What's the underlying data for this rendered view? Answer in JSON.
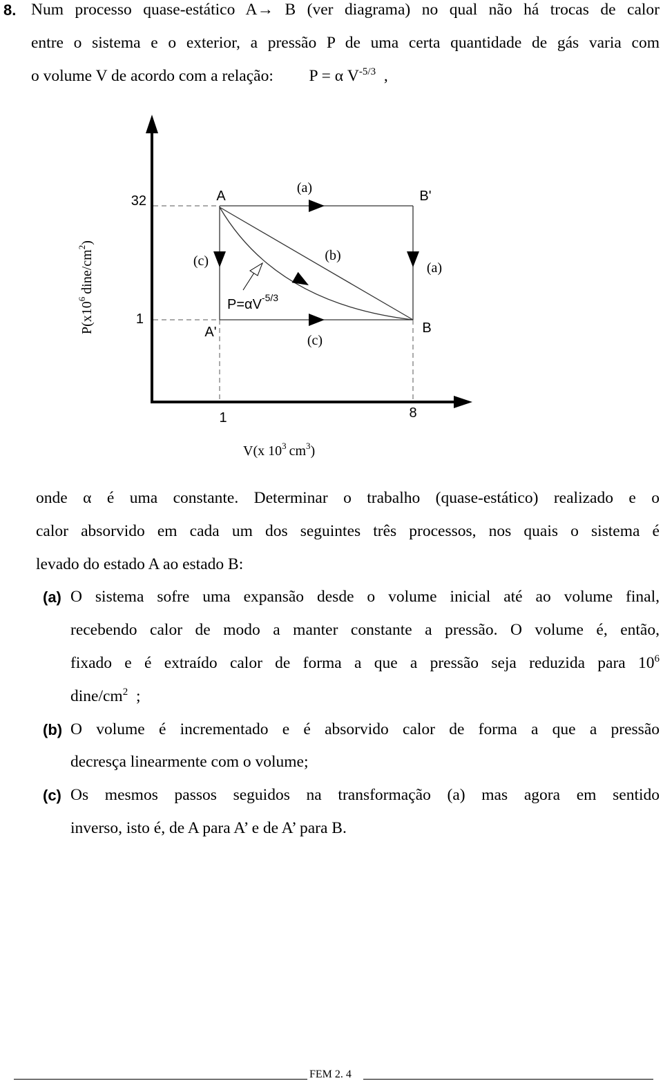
{
  "problem_number": "8.",
  "intro": {
    "lines": [
      [
        {
          "text": "Num processo quase-estático A→ B (ver diagrama) no qual não há trocas de calor"
        }
      ],
      [
        {
          "text": "entre o sistema e o exterior, a pressão P de uma certa quantidade de gás varia com"
        }
      ],
      [
        {
          "text": "o volume V de acordo com a relação:"
        },
        {
          "text": "P = α V"
        },
        {
          "sup": "-5/3"
        },
        {
          "text": ","
        }
      ]
    ]
  },
  "diagram": {
    "y_label": {
      "text": "P(x10",
      "exp": "6",
      "unit": "dine/cm",
      "unit_exp": "2",
      "close": ")"
    },
    "x_label": {
      "text": "V(x 10",
      "exp": "3",
      "unit": "cm",
      "unit_exp": "3",
      "close": ")"
    },
    "y_ticks": [
      32,
      1
    ],
    "x_ticks": [
      1,
      8
    ],
    "points": [
      "A",
      "B'",
      "A'",
      "B"
    ],
    "path_labels": [
      "(a)",
      "(c)",
      "(b)",
      "(a)",
      "(c)"
    ],
    "curve_label": {
      "text": "P=αV",
      "exp": "-5/3"
    }
  },
  "body": {
    "lines": [
      [
        {
          "text": "onde α é uma constante. Determinar o trabalho (quase-estático) realizado e o"
        }
      ],
      [
        {
          "text": "calor absorvido em cada um dos seguintes três processos, nos quais o sistema é"
        }
      ],
      [
        {
          "text": "levado do estado A ao estado B:"
        }
      ]
    ],
    "items": [
      {
        "label": "(a)",
        "lines": [
          [
            {
              "text": "O sistema sofre uma expansão desde o volume inicial até ao volume final,"
            }
          ],
          [
            {
              "text": "recebendo calor de modo a manter constante a pressão. O volume é, então,"
            }
          ],
          [
            {
              "text": "fixado e é extraído calor de forma a que a pressão seja reduzida para 10"
            },
            {
              "sup": "6"
            }
          ],
          [
            {
              "text": "dine/cm"
            },
            {
              "sup": "2"
            },
            {
              "text": ";"
            }
          ]
        ]
      },
      {
        "label": "(b)",
        "lines": [
          [
            {
              "text": "O volume é incrementado e é absorvido calor de forma a que a pressão"
            }
          ],
          [
            {
              "text": "decresça linearmente com o volume;"
            }
          ]
        ]
      },
      {
        "label": "(c)",
        "lines": [
          [
            {
              "text": "Os mesmos passos seguidos na transformação (a) mas agora em sentido"
            }
          ],
          [
            {
              "text": "inverso, isto é, de A para A’ e de A’ para B."
            }
          ]
        ]
      }
    ]
  },
  "footer": "FEM 2. 4"
}
